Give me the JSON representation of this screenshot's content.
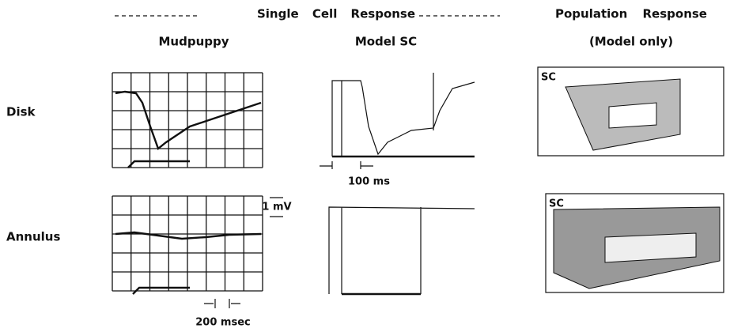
{
  "header": {
    "left_title": "Single Cell Response",
    "left_sub1": "Mudpuppy",
    "left_sub2": "Model SC",
    "right_title": "Population Response",
    "right_sub": "(Model only)"
  },
  "rows": [
    "Disk",
    "Annulus"
  ],
  "scale_labels": {
    "voltage": "1 mV",
    "model_time": "100 ms",
    "time": "200 msec"
  },
  "panel_labels": [
    "SC",
    "SC"
  ]
}
